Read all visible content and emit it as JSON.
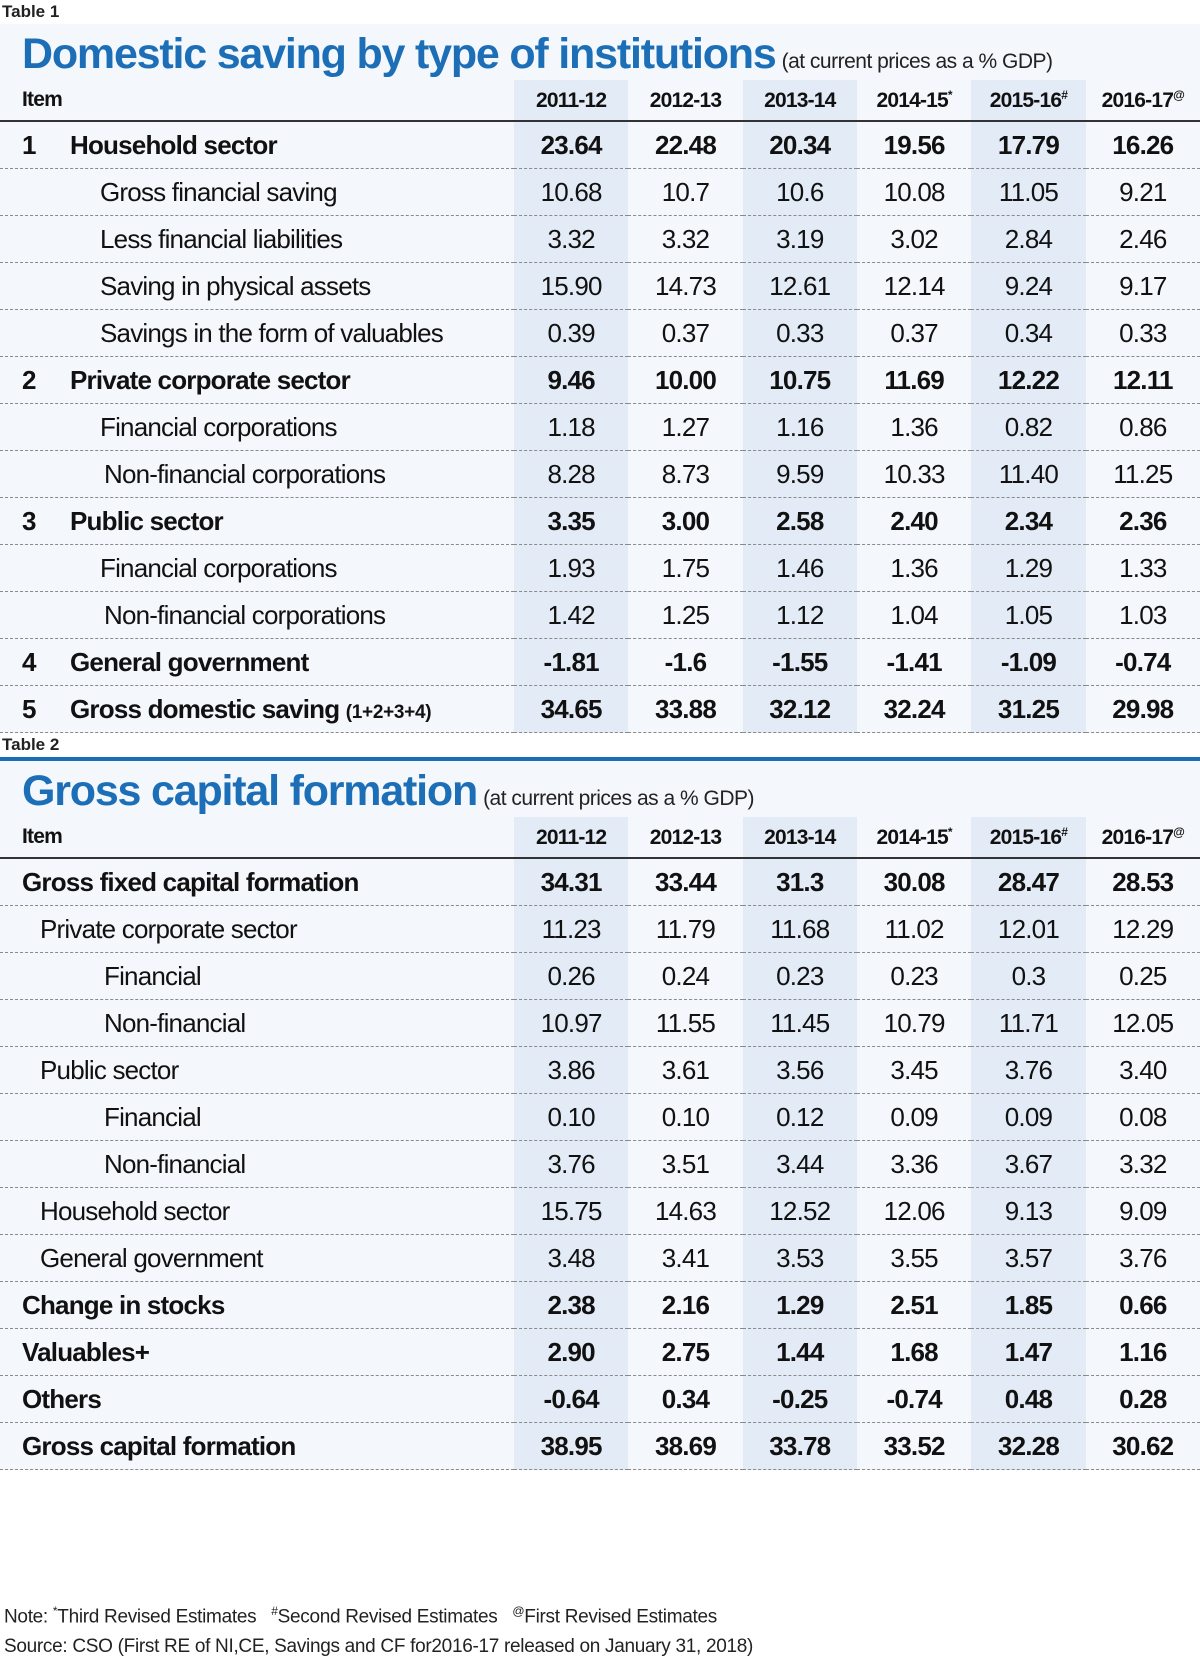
{
  "table1": {
    "tag": "Table 1",
    "title": "Domestic saving by type of institutions",
    "subtitle": "(at current prices as a % GDP)",
    "header": {
      "item": "Item",
      "years": [
        {
          "label": "2011-12",
          "mark": ""
        },
        {
          "label": "2012-13",
          "mark": ""
        },
        {
          "label": "2013-14",
          "mark": ""
        },
        {
          "label": "2014-15",
          "mark": "*"
        },
        {
          "label": "2015-16",
          "mark": "#"
        },
        {
          "label": "2016-17",
          "mark": "@"
        }
      ]
    },
    "rows": [
      {
        "num": "1",
        "label": "Household sector",
        "suffix": "",
        "values": [
          "23.64",
          "22.48",
          "20.34",
          "19.56",
          "17.79",
          "16.26"
        ]
      },
      {
        "num": "",
        "label": "Gross financial saving",
        "suffix": "",
        "values": [
          "10.68",
          "10.7",
          "10.6",
          "10.08",
          "11.05",
          "9.21"
        ]
      },
      {
        "num": "",
        "label": "Less financial liabilities",
        "suffix": "",
        "values": [
          "3.32",
          "3.32",
          "3.19",
          "3.02",
          "2.84",
          "2.46"
        ]
      },
      {
        "num": "",
        "label": "Saving in physical assets",
        "suffix": "",
        "values": [
          "15.90",
          "14.73",
          "12.61",
          "12.14",
          "9.24",
          "9.17"
        ]
      },
      {
        "num": "",
        "label": "Savings in the form of valuables",
        "suffix": "",
        "values": [
          "0.39",
          "0.37",
          "0.33",
          "0.37",
          "0.34",
          "0.33"
        ]
      },
      {
        "num": "2",
        "label": "Private corporate sector",
        "suffix": "",
        "values": [
          "9.46",
          "10.00",
          "10.75",
          "11.69",
          "12.22",
          "12.11"
        ]
      },
      {
        "num": "",
        "label": "Financial corporations",
        "suffix": "",
        "values": [
          "1.18",
          "1.27",
          "1.16",
          "1.36",
          "0.82",
          "0.86"
        ]
      },
      {
        "num": "",
        "label": "Non-financial corporations",
        "suffix": "",
        "values": [
          "8.28",
          "8.73",
          "9.59",
          "10.33",
          "11.40",
          "11.25"
        ]
      },
      {
        "num": "3",
        "label": "Public sector",
        "suffix": "",
        "values": [
          "3.35",
          "3.00",
          "2.58",
          "2.40",
          "2.34",
          "2.36"
        ]
      },
      {
        "num": "",
        "label": "Financial corporations",
        "suffix": "",
        "values": [
          "1.93",
          "1.75",
          "1.46",
          "1.36",
          "1.29",
          "1.33"
        ]
      },
      {
        "num": "",
        "label": "Non-financial corporations",
        "suffix": "",
        "values": [
          "1.42",
          "1.25",
          "1.12",
          "1.04",
          "1.05",
          "1.03"
        ]
      },
      {
        "num": "4",
        "label": "General government",
        "suffix": "",
        "values": [
          "-1.81",
          "-1.6",
          "-1.55",
          "-1.41",
          "-1.09",
          "-0.74"
        ]
      },
      {
        "num": "5",
        "label": "Gross domestic saving",
        "suffix": "(1+2+3+4)",
        "values": [
          "34.65",
          "33.88",
          "32.12",
          "32.24",
          "31.25",
          "29.98"
        ]
      }
    ]
  },
  "table2": {
    "tag": "Table 2",
    "title": "Gross capital formation",
    "subtitle": "(at current prices as a % GDP)",
    "header": {
      "item": "Item",
      "years": [
        {
          "label": "2011-12",
          "mark": ""
        },
        {
          "label": "2012-13",
          "mark": ""
        },
        {
          "label": "2013-14",
          "mark": ""
        },
        {
          "label": "2014-15",
          "mark": "*"
        },
        {
          "label": "2015-16",
          "mark": "#"
        },
        {
          "label": "2016-17",
          "mark": "@"
        }
      ]
    },
    "rows": [
      {
        "label": "Gross fixed capital formation",
        "values": [
          "34.31",
          "33.44",
          "31.3",
          "30.08",
          "28.47",
          "28.53"
        ]
      },
      {
        "label": "Private corporate sector",
        "values": [
          "11.23",
          "11.79",
          "11.68",
          "11.02",
          "12.01",
          "12.29"
        ]
      },
      {
        "label": "Financial",
        "values": [
          "0.26",
          "0.24",
          "0.23",
          "0.23",
          "0.3",
          "0.25"
        ]
      },
      {
        "label": "Non-financial",
        "values": [
          "10.97",
          "11.55",
          "11.45",
          "10.79",
          "11.71",
          "12.05"
        ]
      },
      {
        "label": "Public sector",
        "values": [
          "3.86",
          "3.61",
          "3.56",
          "3.45",
          "3.76",
          "3.40"
        ]
      },
      {
        "label": "Financial",
        "values": [
          "0.10",
          "0.10",
          "0.12",
          "0.09",
          "0.09",
          "0.08"
        ]
      },
      {
        "label": "Non-financial",
        "values": [
          "3.76",
          "3.51",
          "3.44",
          "3.36",
          "3.67",
          "3.32"
        ]
      },
      {
        "label": "Household sector",
        "values": [
          "15.75",
          "14.63",
          "12.52",
          "12.06",
          "9.13",
          "9.09"
        ]
      },
      {
        "label": "General government",
        "values": [
          "3.48",
          "3.41",
          "3.53",
          "3.55",
          "3.57",
          "3.76"
        ]
      },
      {
        "label": "Change in stocks",
        "values": [
          "2.38",
          "2.16",
          "1.29",
          "2.51",
          "1.85",
          "0.66"
        ]
      },
      {
        "label": "Valuables+",
        "values": [
          "2.90",
          "2.75",
          "1.44",
          "1.68",
          "1.47",
          "1.16"
        ]
      },
      {
        "label": "Others",
        "values": [
          "-0.64",
          "0.34",
          "-0.25",
          "-0.74",
          "0.48",
          "0.28"
        ]
      },
      {
        "label": "Gross capital formation",
        "values": [
          "38.95",
          "38.69",
          "33.78",
          "33.52",
          "32.28",
          "30.62"
        ]
      }
    ]
  },
  "notes": {
    "prefix": "Note:",
    "m1": "*",
    "t1": "Third Revised Estimates",
    "m2": "#",
    "t2": "Second Revised Estimates",
    "m3": "@",
    "t3": "First Revised Estimates",
    "source": "Source: CSO (First RE of NI,CE, Savings and CF for2016-17 released on January 31, 2018)"
  },
  "colors": {
    "title_blue": "#1c6fb6",
    "panel_bg": "#f4f7fc",
    "alt_col_bg": "#e3ebf6"
  }
}
